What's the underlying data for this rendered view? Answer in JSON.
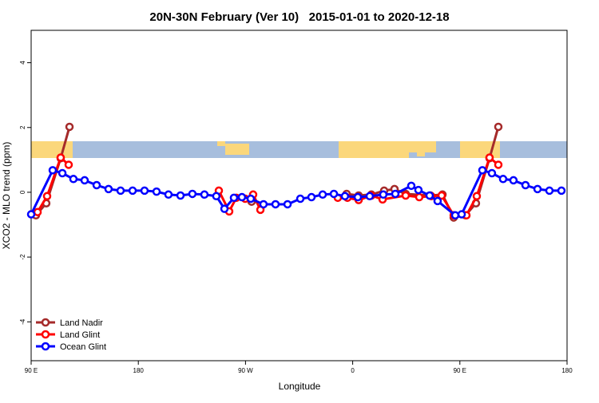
{
  "chart_data": {
    "type": "line",
    "title": "20N-30N February (Ver 10)   2015-01-01 to 2020-12-18",
    "x_label": "Longitude",
    "y_label": "XCO2 - MLO trend (ppm)",
    "xlim": [
      90,
      540
    ],
    "ylim": [
      -5.2,
      5.0
    ],
    "xticks": [
      {
        "value": 90,
        "label": "90 E"
      },
      {
        "value": 180,
        "label": "180"
      },
      {
        "value": 270,
        "label": "90 W"
      },
      {
        "value": 360,
        "label": "0"
      },
      {
        "value": 450,
        "label": "90 E"
      },
      {
        "value": 540,
        "label": "180"
      }
    ],
    "yticks": [
      -4,
      -2,
      0,
      2,
      4
    ],
    "legend": "bottom-left",
    "series": [
      {
        "name": "Land Nadir",
        "color": "#a52a2a",
        "x": [
          94.0,
          102.7,
          114.8,
          122.2,
          null,
          275.1,
          null,
          354.9,
          365.0,
          375.7,
          386.4,
          395.1,
          404.5,
          425.3,
          435.4,
          444.8,
          454.8,
          463.5,
          474.9,
          482.3
        ],
        "values": [
          -0.71,
          -0.34,
          1.05,
          2.02,
          null,
          -0.29,
          null,
          -0.05,
          -0.1,
          -0.07,
          0.05,
          0.1,
          -0.05,
          -0.1,
          -0.07,
          -0.78,
          -0.71,
          -0.34,
          1.05,
          2.02
        ]
      },
      {
        "name": "Land Glint",
        "color": "#ff0000",
        "x": [
          95.4,
          103.4,
          114.8,
          121.5,
          null,
          247.6,
          256.3,
          262.3,
          269.7,
          276.4,
          282.5,
          null,
          347.5,
          355.6,
          365.0,
          375.7,
          385.1,
          404.5,
          415.9,
          426.0,
          434.7,
          444.8,
          455.5,
          464.2,
          474.9,
          482.3
        ],
        "values": [
          -0.61,
          -0.12,
          1.07,
          0.85,
          null,
          0.05,
          -0.59,
          -0.17,
          -0.2,
          -0.07,
          -0.54,
          null,
          -0.17,
          -0.17,
          -0.24,
          -0.1,
          -0.22,
          -0.1,
          -0.15,
          -0.12,
          -0.1,
          -0.71,
          -0.71,
          -0.12,
          1.07,
          0.85
        ]
      },
      {
        "name": "Ocean Glint",
        "color": "#0000ff",
        "x": [
          90,
          108.1,
          116.2,
          125.5,
          134.9,
          145.0,
          155.0,
          165.1,
          175.2,
          185.2,
          195.3,
          205.3,
          215.4,
          225.4,
          235.5,
          245.5,
          252.3,
          260.3,
          267.0,
          274.4,
          285.1,
          295.2,
          305.3,
          316.0,
          325.4,
          334.8,
          344.2,
          353.5,
          364.3,
          374.3,
          385.7,
          395.8,
          409.2,
          415.2,
          424.6,
          431.3,
          446.1,
          451.5,
          468.9,
          476.9,
          486.3,
          495.0,
          505.1,
          515.2,
          525.2,
          535.3
        ],
        "values": [
          -0.68,
          0.68,
          0.59,
          0.41,
          0.37,
          0.22,
          0.1,
          0.05,
          0.05,
          0.05,
          0.02,
          -0.07,
          -0.1,
          -0.05,
          -0.07,
          -0.12,
          -0.51,
          -0.17,
          -0.15,
          -0.2,
          -0.37,
          -0.37,
          -0.37,
          -0.2,
          -0.15,
          -0.07,
          -0.05,
          -0.12,
          -0.15,
          -0.12,
          -0.07,
          -0.05,
          0.2,
          0.07,
          -0.1,
          -0.27,
          -0.71,
          -0.68,
          0.68,
          0.59,
          0.41,
          0.37,
          0.22,
          0.1,
          0.05,
          0.05
        ]
      }
    ]
  }
}
